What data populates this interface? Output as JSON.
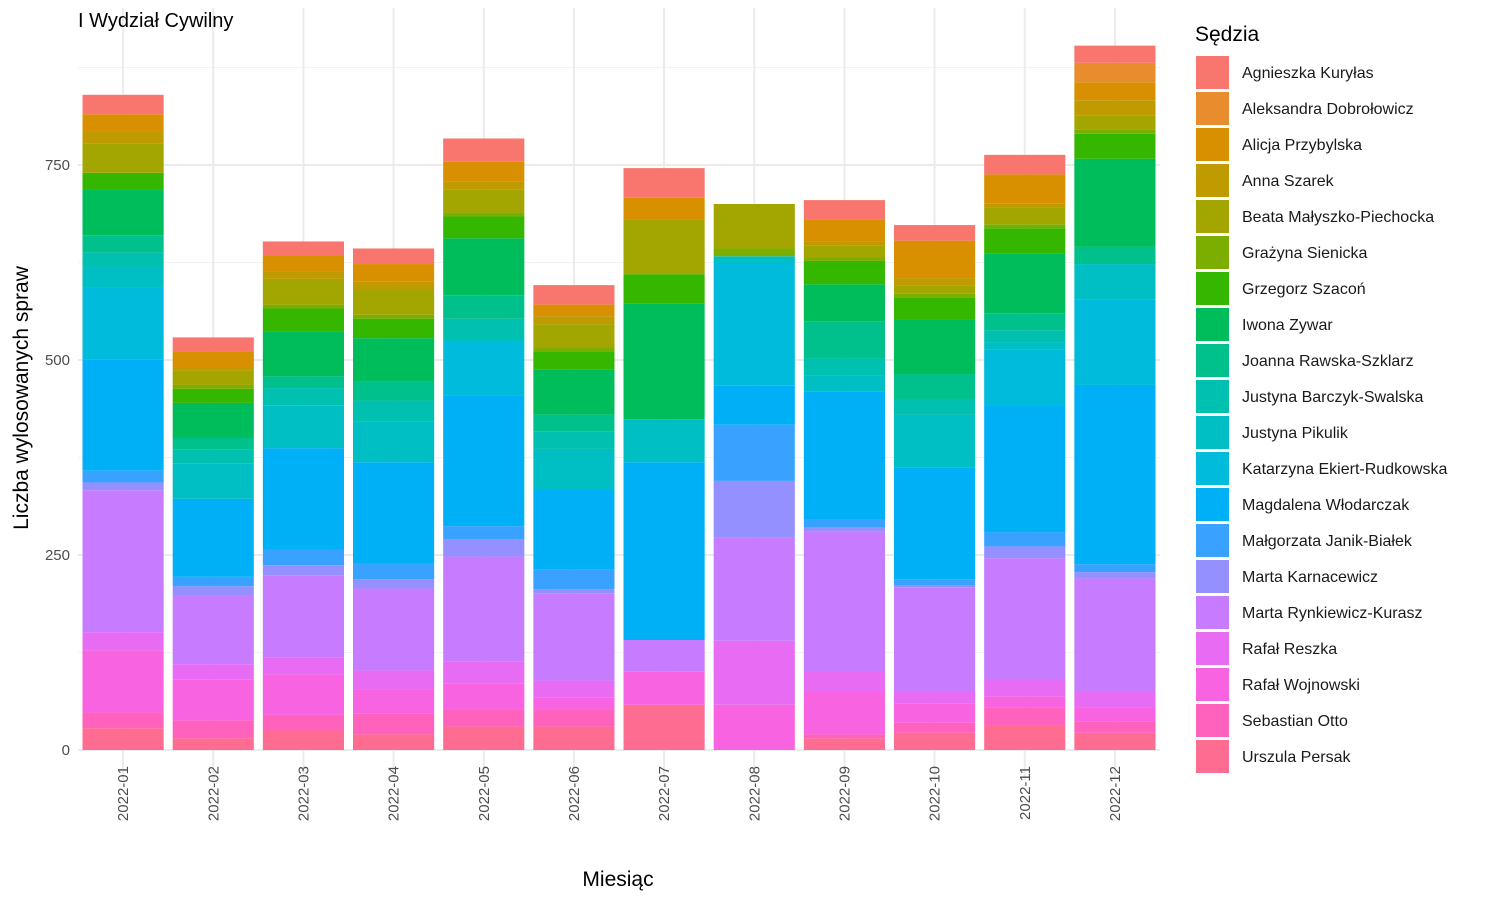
{
  "chart_data": {
    "type": "bar",
    "stacked": true,
    "title": "I Wydział Cywilny",
    "xlabel": "Miesiąc",
    "ylabel": "Liczba wylosowanych spraw",
    "legend_title": "Sędzia",
    "legend_position": "right",
    "grid": true,
    "ylim": [
      0,
      910
    ],
    "yticks": [
      0,
      250,
      500,
      750
    ],
    "categories": [
      "2022-01",
      "2022-02",
      "2022-03",
      "2022-04",
      "2022-05",
      "2022-06",
      "2022-07",
      "2022-08",
      "2022-09",
      "2022-10",
      "2022-11",
      "2022-12"
    ],
    "series": [
      {
        "name": "Urszula Persak",
        "color": "#FF6C91",
        "values": [
          28,
          15,
          25,
          20,
          30,
          30,
          58,
          0,
          15,
          22,
          32,
          22
        ]
      },
      {
        "name": "Sebastian Otto",
        "color": "#FF62BC",
        "values": [
          20,
          23,
          20,
          27,
          22,
          22,
          0,
          0,
          5,
          13,
          22,
          15
        ]
      },
      {
        "name": "Rafał Wojnowski",
        "color": "#F763E0",
        "values": [
          80,
          52,
          52,
          30,
          33,
          15,
          43,
          58,
          55,
          25,
          15,
          18
        ]
      },
      {
        "name": "Rafał Reszka",
        "color": "#E76BF3",
        "values": [
          23,
          20,
          22,
          25,
          28,
          22,
          0,
          82,
          25,
          15,
          22,
          20
        ]
      },
      {
        "name": "Marta Rynkiewicz-Kurasz",
        "color": "#C77CFF",
        "values": [
          182,
          88,
          105,
          105,
          135,
          112,
          40,
          132,
          180,
          133,
          155,
          145
        ]
      },
      {
        "name": "Marta Karnacewicz",
        "color": "#9590FF",
        "values": [
          10,
          12,
          13,
          12,
          22,
          5,
          0,
          73,
          5,
          3,
          15,
          8
        ]
      },
      {
        "name": "Małgorzata Janik-Białek",
        "color": "#39A1FF",
        "values": [
          15,
          12,
          20,
          20,
          17,
          25,
          0,
          72,
          10,
          8,
          18,
          10
        ]
      },
      {
        "name": "Magdalena Włodarczak",
        "color": "#00B0F6",
        "values": [
          143,
          100,
          130,
          130,
          168,
          103,
          228,
          50,
          165,
          143,
          162,
          230
        ]
      },
      {
        "name": "Katarzyna Ekiert-Rudkowska",
        "color": "#00BBDB",
        "values": [
          92,
          0,
          0,
          0,
          70,
          0,
          0,
          158,
          0,
          0,
          72,
          110
        ]
      },
      {
        "name": "Justyna Pikulik",
        "color": "#00BFC4",
        "values": [
          25,
          45,
          55,
          52,
          0,
          52,
          55,
          8,
          20,
          68,
          10,
          45
        ]
      },
      {
        "name": "Justyna Barczyk-Swalska",
        "color": "#00C0AF",
        "values": [
          20,
          18,
          22,
          27,
          28,
          22,
          0,
          0,
          22,
          20,
          15,
          0
        ]
      },
      {
        "name": "Joanna Rawska-Szklarz",
        "color": "#00C08B",
        "values": [
          22,
          15,
          15,
          25,
          30,
          22,
          0,
          0,
          47,
          32,
          22,
          22
        ]
      },
      {
        "name": "Iwona Zywar",
        "color": "#00BD5C",
        "values": [
          58,
          45,
          57,
          55,
          73,
          58,
          148,
          0,
          48,
          70,
          77,
          113
        ]
      },
      {
        "name": "Grzegorz Szacoń",
        "color": "#35B700",
        "values": [
          22,
          18,
          30,
          25,
          28,
          23,
          38,
          0,
          30,
          28,
          32,
          32
        ]
      },
      {
        "name": "Grażyna Sienicka",
        "color": "#7CAE00",
        "values": [
          0,
          5,
          5,
          5,
          5,
          5,
          0,
          10,
          5,
          5,
          5,
          5
        ]
      },
      {
        "name": "Beata Małyszko-Piechocka",
        "color": "#A3A500",
        "values": [
          38,
          18,
          33,
          33,
          30,
          30,
          70,
          57,
          15,
          10,
          22,
          18
        ]
      },
      {
        "name": "Anna Szarek",
        "color": "#C09B00",
        "values": [
          15,
          5,
          10,
          10,
          10,
          10,
          0,
          0,
          5,
          10,
          5,
          20
        ]
      },
      {
        "name": "Alicja Przybylska",
        "color": "#D89000",
        "values": [
          22,
          20,
          20,
          22,
          25,
          15,
          28,
          0,
          28,
          48,
          37,
          23
        ]
      },
      {
        "name": "Aleksandra Dobrołowicz",
        "color": "#E98C2E",
        "values": [
          0,
          0,
          0,
          0,
          0,
          0,
          0,
          0,
          0,
          0,
          0,
          25
        ]
      },
      {
        "name": "Agnieszka Kuryłas",
        "color": "#F8766D",
        "values": [
          25,
          18,
          18,
          20,
          30,
          25,
          38,
          0,
          25,
          20,
          25,
          22
        ]
      }
    ]
  }
}
